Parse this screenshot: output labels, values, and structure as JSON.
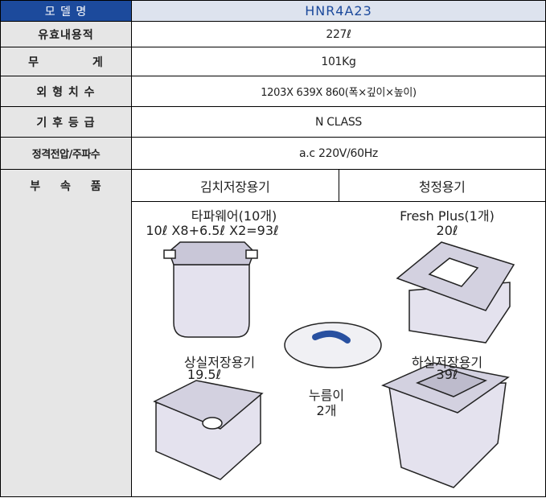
{
  "table": {
    "rows": [
      [
        "모 델 명",
        "HNR4A23"
      ],
      [
        "유효내용적",
        "227ℓ"
      ],
      [
        "무 게",
        "101Kg"
      ],
      [
        "외 형 치 수",
        "1203X 639X 860(폭×깊이×높이)"
      ],
      [
        "기 후 등 급",
        "N CLASS"
      ],
      [
        "정격전압/주파수",
        "a.c 220V/60Hz"
      ]
    ]
  },
  "accessories": {
    "label": "부 속 품",
    "headers": [
      "김치저장용기",
      "청정용기"
    ],
    "items": [
      {
        "name": "타파웨어(10개)",
        "detail": "10ℓ X8+6.5ℓ X2=93ℓ"
      },
      {
        "name": "Fresh Plus(1개)",
        "detail": "20ℓ"
      },
      {
        "name": "상실저장용기",
        "detail": "19.5ℓ"
      },
      {
        "name": "누름이",
        "detail": "2개"
      },
      {
        "name": "하실저장용기",
        "detail": "39ℓ"
      }
    ]
  }
}
